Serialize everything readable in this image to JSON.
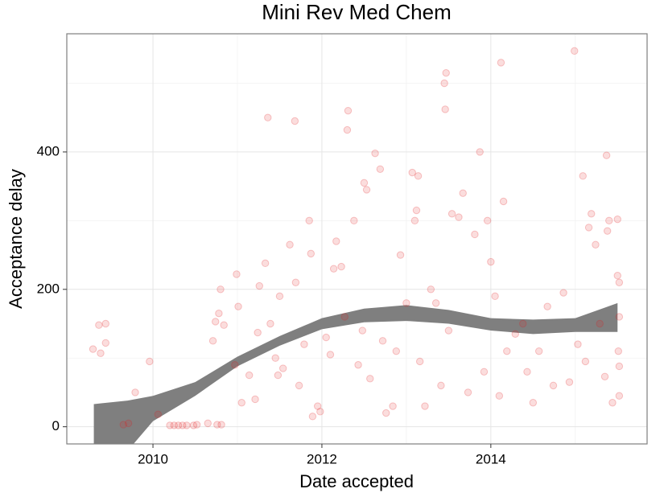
{
  "chart_data": {
    "type": "scatter",
    "title": "Mini Rev Med Chem",
    "x_label": "Date accepted",
    "y_label": "Acceptance delay",
    "xlim": [
      2008.98,
      2015.85
    ],
    "ylim": [
      -25,
      572
    ],
    "xticks": [
      2010,
      2012,
      2014
    ],
    "yticks": [
      0,
      200,
      400
    ],
    "minor_xticks": [
      2011,
      2013,
      2015
    ],
    "minor_yticks": [
      100,
      300,
      500
    ],
    "grid": true,
    "color": "#e31a1c",
    "alpha": 0.15,
    "x": [
      2009.29,
      2009.36,
      2009.44,
      2009.38,
      2009.44,
      2009.65,
      2009.71,
      2009.79,
      2009.96,
      2010.06,
      2010.2,
      2010.25,
      2010.3,
      2010.35,
      2010.4,
      2010.48,
      2010.52,
      2010.65,
      2010.76,
      2010.81,
      2010.74,
      2010.78,
      2010.8,
      2010.84,
      2010.71,
      2010.97,
      2010.99,
      2011.01,
      2011.05,
      2011.14,
      2011.21,
      2011.24,
      2011.26,
      2011.33,
      2011.36,
      2011.39,
      2011.45,
      2011.48,
      2011.5,
      2011.54,
      2011.62,
      2011.69,
      2011.68,
      2011.73,
      2011.79,
      2011.85,
      2011.87,
      2011.89,
      2011.95,
      2011.98,
      2012.05,
      2012.1,
      2012.14,
      2012.17,
      2012.23,
      2012.27,
      2012.3,
      2012.31,
      2012.38,
      2012.43,
      2012.48,
      2012.5,
      2012.53,
      2012.57,
      2012.63,
      2012.69,
      2012.72,
      2012.76,
      2012.84,
      2012.88,
      2012.93,
      2013.0,
      2013.07,
      2013.1,
      2013.12,
      2013.14,
      2013.16,
      2013.22,
      2013.29,
      2013.35,
      2013.41,
      2013.45,
      2013.47,
      2013.46,
      2013.5,
      2013.54,
      2013.62,
      2013.67,
      2013.73,
      2013.81,
      2013.87,
      2013.92,
      2013.96,
      2014.0,
      2014.05,
      2014.1,
      2014.12,
      2014.15,
      2014.19,
      2014.29,
      2014.38,
      2014.43,
      2014.5,
      2014.57,
      2014.67,
      2014.74,
      2014.86,
      2014.93,
      2014.99,
      2015.03,
      2015.09,
      2015.12,
      2015.16,
      2015.19,
      2015.24,
      2015.29,
      2015.35,
      2015.37,
      2015.38,
      2015.4,
      2015.44,
      2015.5,
      2015.52,
      2015.52,
      2015.52,
      2015.5,
      2015.52,
      2015.51
    ],
    "values": [
      113,
      148,
      150,
      107,
      122,
      3,
      5,
      50,
      95,
      18,
      2,
      2,
      2,
      2,
      2,
      2,
      3,
      5,
      3,
      3,
      153,
      165,
      200,
      148,
      125,
      90,
      222,
      175,
      35,
      75,
      40,
      137,
      205,
      238,
      450,
      150,
      100,
      75,
      190,
      85,
      265,
      210,
      445,
      60,
      120,
      300,
      252,
      15,
      30,
      22,
      130,
      105,
      230,
      270,
      233,
      160,
      432,
      460,
      300,
      90,
      140,
      355,
      345,
      70,
      398,
      375,
      125,
      20,
      30,
      110,
      250,
      180,
      370,
      300,
      315,
      365,
      95,
      30,
      200,
      180,
      60,
      500,
      515,
      462,
      140,
      310,
      305,
      340,
      50,
      280,
      400,
      80,
      300,
      240,
      190,
      45,
      530,
      328,
      110,
      135,
      150,
      80,
      35,
      110,
      175,
      60,
      195,
      65,
      547,
      120,
      365,
      95,
      290,
      310,
      265,
      150,
      73,
      395,
      285,
      300,
      35,
      220,
      45,
      160,
      88,
      302,
      210,
      110
    ],
    "band": {
      "color": "#7f7f7f",
      "x": [
        2009.3,
        2009.7,
        2010,
        2010.5,
        2011,
        2011.5,
        2012,
        2012.5,
        2013,
        2013.5,
        2014,
        2014.5,
        2015,
        2015.5
      ],
      "upper": [
        33,
        38,
        45,
        65,
        102,
        132,
        158,
        172,
        177,
        170,
        158,
        156,
        158,
        180
      ],
      "lower": [
        -70,
        -35,
        8,
        45,
        88,
        118,
        142,
        152,
        154,
        150,
        140,
        135,
        138,
        138
      ]
    }
  }
}
